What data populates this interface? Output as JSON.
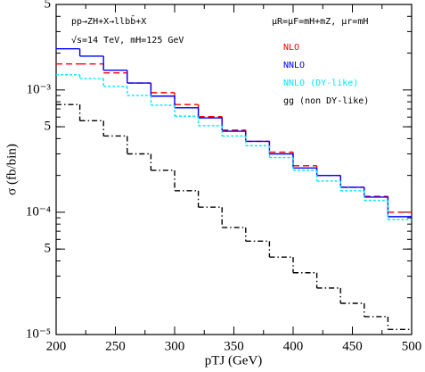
{
  "chart_data": {
    "type": "histogram",
    "bins": [
      200,
      220,
      240,
      260,
      280,
      300,
      320,
      340,
      360,
      380,
      400,
      420,
      440,
      460,
      480,
      500
    ],
    "xlim": [
      200,
      500
    ],
    "xticks": [
      200,
      250,
      300,
      350,
      400,
      450,
      500
    ],
    "ylim": [
      1e-05,
      0.005
    ],
    "log_y": true,
    "yticks": [
      {
        "value": 1e-05,
        "label": "10⁻⁵"
      },
      {
        "value": 5e-05,
        "label": "5"
      },
      {
        "value": 0.0001,
        "label": "10⁻⁴"
      },
      {
        "value": 0.0005,
        "label": "5"
      },
      {
        "value": 0.001,
        "label": "10⁻³"
      },
      {
        "value": 0.005,
        "label": "5"
      }
    ],
    "xlabel": "pTJ (GeV)",
    "ylabel": "σ (fb/bin)",
    "annotations": [
      "pp→ZH+X→llbb̄+X",
      "√s=14 TeV,   mH=125 GeV",
      "μR=μF=mH+mZ,   μr=mH"
    ],
    "series": [
      {
        "name": "NLO",
        "color": "#ff0000",
        "style": "dashed",
        "values": [
          0.00163,
          0.00163,
          0.00138,
          0.00114,
          0.00095,
          0.00076,
          0.000605,
          0.00047,
          0.00038,
          0.00031,
          0.00024,
          0.0002,
          0.00016,
          0.000135,
          0.0001
        ]
      },
      {
        "name": "NNLO",
        "color": "#0000ff",
        "style": "solid",
        "values": [
          0.00217,
          0.00189,
          0.00145,
          0.00114,
          0.00089,
          0.000715,
          0.00059,
          0.00046,
          0.00038,
          0.0003,
          0.00023,
          0.0002,
          0.00016,
          0.000133,
          9.2e-05
        ]
      },
      {
        "name": "NNLO (DY-like)",
        "color": "#00e5ff",
        "style": "dotted",
        "values": [
          0.00133,
          0.00124,
          0.00107,
          0.0009,
          0.00075,
          0.00061,
          0.00051,
          0.00042,
          0.00035,
          0.00028,
          0.00022,
          0.00018,
          0.00015,
          0.000125,
          8.7e-05
        ]
      },
      {
        "name": "gg (non DY-like)",
        "color": "#000000",
        "style": "dashdot",
        "values": [
          0.00076,
          0.00056,
          0.00042,
          0.0003,
          0.00022,
          0.00015,
          0.00011,
          7.5e-05,
          5.8e-05,
          4.3e-05,
          3.2e-05,
          2.4e-05,
          1.8e-05,
          1.4e-05,
          1.1e-05
        ]
      }
    ]
  }
}
